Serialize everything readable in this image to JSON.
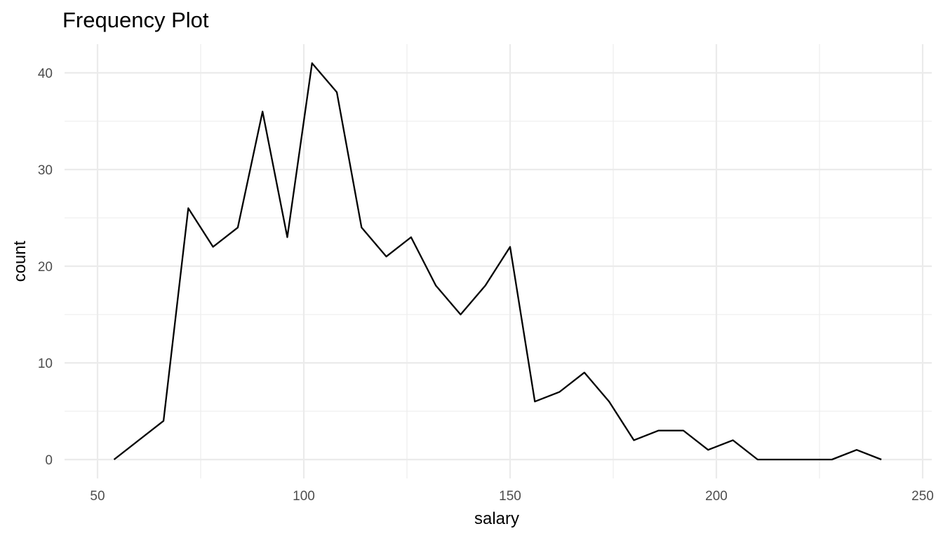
{
  "chart_data": {
    "type": "line",
    "title": "Frequency Plot",
    "xlabel": "salary",
    "ylabel": "count",
    "xlim": [
      45,
      252
    ],
    "ylim": [
      -2,
      43
    ],
    "x_ticks": [
      50,
      100,
      150,
      200,
      250
    ],
    "x_minor_ticks": [
      75,
      125,
      175,
      225
    ],
    "y_ticks": [
      0,
      10,
      20,
      30,
      40
    ],
    "y_minor_ticks": [
      5,
      15,
      25,
      35
    ],
    "grid": true,
    "line_color": "#000000",
    "grid_color": "#ebebeb",
    "series": [
      {
        "x": [
          54,
          60,
          66,
          72,
          78,
          84,
          90,
          96,
          102,
          108,
          114,
          120,
          126,
          132,
          138,
          144,
          150,
          156,
          162,
          168,
          174,
          180,
          186,
          192,
          198,
          204,
          210,
          216,
          222,
          228,
          234,
          240
        ],
        "values": [
          0,
          2,
          4,
          26,
          22,
          24,
          36,
          23,
          41,
          38,
          24,
          21,
          23,
          18,
          15,
          18,
          22,
          6,
          7,
          9,
          6,
          2,
          3,
          3,
          1,
          2,
          0,
          0,
          0,
          0,
          1,
          0
        ]
      }
    ]
  }
}
